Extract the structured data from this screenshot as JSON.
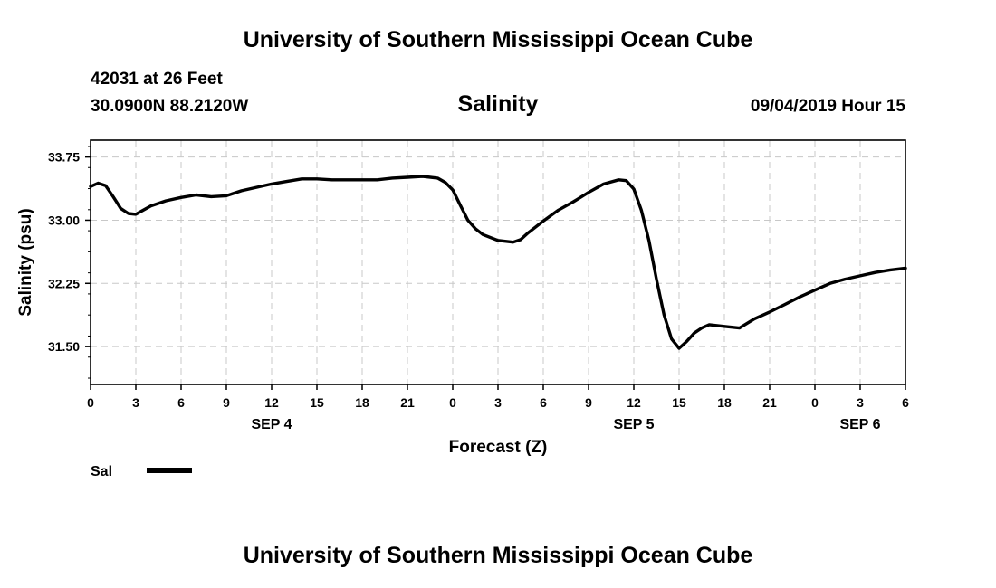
{
  "page": {
    "title_top": "University of Southern Mississippi Ocean Cube",
    "title_bottom": "University of Southern Mississippi Ocean Cube",
    "station_line1": "42031 at 26 Feet",
    "station_line2": "30.0900N 88.2120W",
    "timestamp": "09/04/2019 Hour 15"
  },
  "chart_data": {
    "type": "line",
    "title": "Salinity",
    "xlabel": "Forecast (Z)",
    "ylabel": "Salinity (psu)",
    "x_unit": "forecast hour",
    "xlim": [
      0,
      54
    ],
    "ylim": [
      31.05,
      33.95
    ],
    "yticks": [
      31.5,
      32.25,
      33.0,
      33.75
    ],
    "ytick_labels": [
      "31.50",
      "32.25",
      "33.00",
      "33.75"
    ],
    "xticks": [
      0,
      3,
      6,
      9,
      12,
      15,
      18,
      21,
      24,
      27,
      30,
      33,
      36,
      39,
      42,
      45,
      48,
      51,
      54
    ],
    "xtick_labels": [
      "0",
      "3",
      "6",
      "9",
      "12",
      "15",
      "18",
      "21",
      "0",
      "3",
      "6",
      "9",
      "12",
      "15",
      "18",
      "21",
      "0",
      "3",
      "6"
    ],
    "date_labels": [
      {
        "x": 12,
        "label": "SEP 4"
      },
      {
        "x": 36,
        "label": "SEP 5"
      },
      {
        "x": 51,
        "label": "SEP 6"
      }
    ],
    "grid": true,
    "legend": {
      "position": "bottom-left",
      "entries": [
        {
          "label": "Sal",
          "color": "#000000"
        }
      ]
    },
    "series": [
      {
        "name": "Sal",
        "color": "#000000",
        "x": [
          0,
          0.5,
          1,
          1.5,
          2,
          2.5,
          3,
          4,
          5,
          6,
          7,
          8,
          9,
          10,
          11,
          12,
          13,
          14,
          15,
          16,
          17,
          18,
          19,
          20,
          21,
          22,
          23,
          23.5,
          24,
          24.5,
          25,
          25.5,
          26,
          27,
          28,
          28.5,
          29,
          30,
          31,
          32,
          33,
          34,
          35,
          35.5,
          36,
          36.5,
          37,
          37.5,
          38,
          38.5,
          39,
          39.5,
          40,
          40.5,
          41,
          42,
          43,
          44,
          45,
          46,
          47,
          48,
          49,
          50,
          51,
          52,
          53,
          54
        ],
        "y": [
          33.4,
          33.44,
          33.41,
          33.28,
          33.14,
          33.08,
          33.07,
          33.17,
          33.23,
          33.27,
          33.3,
          33.28,
          33.29,
          33.35,
          33.39,
          33.43,
          33.46,
          33.49,
          33.49,
          33.48,
          33.48,
          33.48,
          33.48,
          33.5,
          33.51,
          33.52,
          33.5,
          33.45,
          33.36,
          33.18,
          33.0,
          32.9,
          32.83,
          32.76,
          32.74,
          32.77,
          32.85,
          32.99,
          33.12,
          33.22,
          33.33,
          33.43,
          33.48,
          33.47,
          33.37,
          33.12,
          32.76,
          32.3,
          31.88,
          31.59,
          31.48,
          31.56,
          31.66,
          31.72,
          31.76,
          31.74,
          31.72,
          31.83,
          31.91,
          32.0,
          32.09,
          32.17,
          32.25,
          32.3,
          32.34,
          32.38,
          32.41,
          32.43
        ]
      }
    ]
  }
}
